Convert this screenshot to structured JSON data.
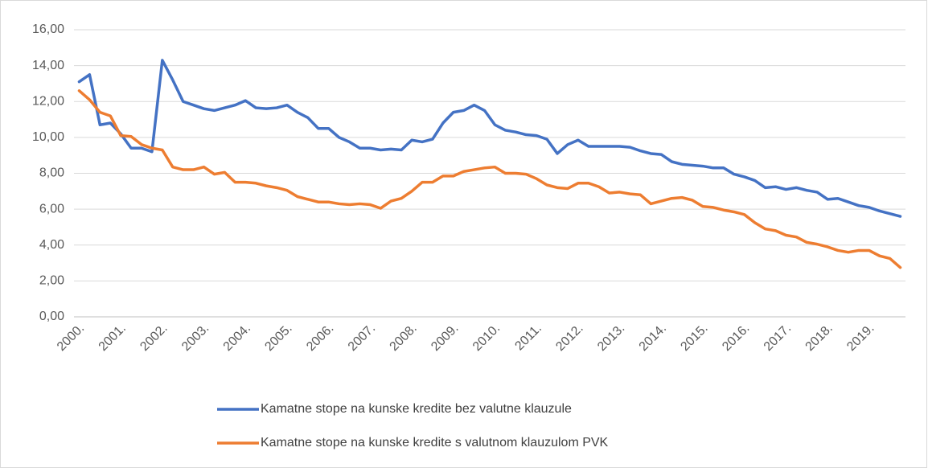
{
  "chart_data": {
    "type": "line",
    "categories": [
      "2000.",
      null,
      null,
      null,
      "2001.",
      null,
      null,
      null,
      "2002.",
      null,
      null,
      null,
      "2003.",
      null,
      null,
      null,
      "2004.",
      null,
      null,
      null,
      "2005.",
      null,
      null,
      null,
      "2006.",
      null,
      null,
      null,
      "2007.",
      null,
      null,
      null,
      "2008.",
      null,
      null,
      null,
      "2009.",
      null,
      null,
      null,
      "2010.",
      null,
      null,
      null,
      "2011.",
      null,
      null,
      null,
      "2012.",
      null,
      null,
      null,
      "2013.",
      null,
      null,
      null,
      "2014.",
      null,
      null,
      null,
      "2015.",
      null,
      null,
      null,
      "2016.",
      null,
      null,
      null,
      "2017.",
      null,
      null,
      null,
      "2018.",
      null,
      null,
      null,
      "2019.",
      null,
      null,
      null
    ],
    "series": [
      {
        "name": "Kamatne stope na kunske kredite bez valutne klauzule",
        "color": "#4472c4",
        "values": [
          13.1,
          13.5,
          10.7,
          10.8,
          10.2,
          9.4,
          9.4,
          9.2,
          14.3,
          13.2,
          12.0,
          11.8,
          11.6,
          11.5,
          11.65,
          11.8,
          12.05,
          11.65,
          11.6,
          11.65,
          11.8,
          11.4,
          11.1,
          10.5,
          10.5,
          10.0,
          9.75,
          9.4,
          9.4,
          9.3,
          9.35,
          9.3,
          9.85,
          9.75,
          9.9,
          10.8,
          11.4,
          11.5,
          11.8,
          11.5,
          10.7,
          10.4,
          10.3,
          10.15,
          10.1,
          9.9,
          9.1,
          9.6,
          9.85,
          9.5,
          9.5,
          9.5,
          9.5,
          9.45,
          9.25,
          9.1,
          9.05,
          8.65,
          8.5,
          8.45,
          8.4,
          8.3,
          8.3,
          7.95,
          7.8,
          7.6,
          7.2,
          7.25,
          7.1,
          7.2,
          7.05,
          6.95,
          6.55,
          6.6,
          6.4,
          6.2,
          6.1,
          5.9,
          5.75,
          5.6
        ]
      },
      {
        "name": "Kamatne stope na kunske kredite s valutnom klauzulom PVK",
        "color": "#ed7d31",
        "values": [
          12.6,
          12.1,
          11.4,
          11.2,
          10.1,
          10.05,
          9.6,
          9.4,
          9.3,
          8.35,
          8.2,
          8.2,
          8.35,
          7.95,
          8.05,
          7.5,
          7.5,
          7.45,
          7.3,
          7.2,
          7.05,
          6.7,
          6.55,
          6.4,
          6.4,
          6.3,
          6.25,
          6.3,
          6.25,
          6.05,
          6.45,
          6.6,
          7.0,
          7.5,
          7.5,
          7.85,
          7.85,
          8.1,
          8.2,
          8.3,
          8.35,
          8.0,
          8.0,
          7.95,
          7.7,
          7.35,
          7.2,
          7.15,
          7.45,
          7.45,
          7.25,
          6.9,
          6.95,
          6.85,
          6.8,
          6.3,
          6.45,
          6.6,
          6.65,
          6.5,
          6.15,
          6.1,
          5.95,
          5.85,
          5.7,
          5.25,
          4.9,
          4.8,
          4.55,
          4.45,
          4.15,
          4.05,
          3.9,
          3.7,
          3.6,
          3.7,
          3.7,
          3.4,
          3.25,
          2.75
        ]
      }
    ],
    "ylim": [
      0,
      16
    ],
    "yticks": [
      {
        "value": 0,
        "label": "0,00"
      },
      {
        "value": 2,
        "label": "2,00"
      },
      {
        "value": 4,
        "label": "4,00"
      },
      {
        "value": 6,
        "label": "6,00"
      },
      {
        "value": 8,
        "label": "8,00"
      },
      {
        "value": 10,
        "label": "10,00"
      },
      {
        "value": 12,
        "label": "12,00"
      },
      {
        "value": 14,
        "label": "14,00"
      },
      {
        "value": 16,
        "label": "16,00"
      }
    ],
    "grid": true,
    "legend": "bottom"
  }
}
